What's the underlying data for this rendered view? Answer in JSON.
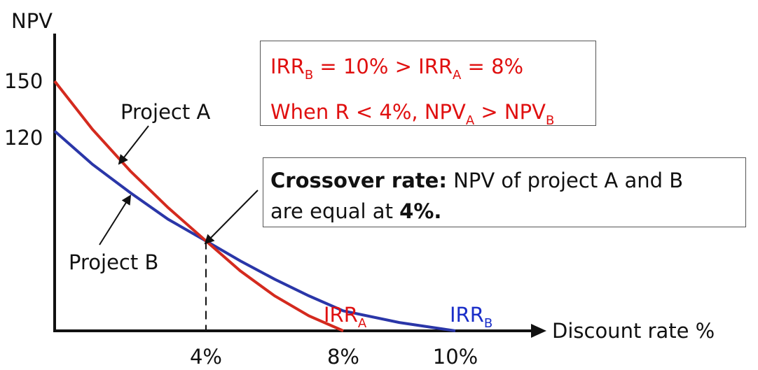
{
  "chart_data": {
    "type": "line",
    "ylabel": "NPV",
    "xlabel": "Discount rate %",
    "y_ticks": [
      "150",
      "120"
    ],
    "x_ticks": [
      "4%",
      "8%",
      "10%"
    ],
    "series": [
      {
        "name": "Project A",
        "color": "#d42a1e",
        "x": [
          0,
          1,
          2,
          3,
          4,
          5,
          6,
          7,
          8
        ],
        "y": [
          150,
          121,
          96,
          74,
          54,
          36,
          21,
          9,
          0
        ]
      },
      {
        "name": "Project B",
        "color": "#2a36a8",
        "x": [
          0,
          1,
          2,
          3,
          4,
          5,
          6,
          7,
          8,
          9,
          10
        ],
        "y": [
          120,
          100,
          83,
          67,
          54,
          42,
          31,
          21,
          12,
          5,
          0
        ]
      }
    ],
    "crossover": {
      "x": 4,
      "y": 54
    },
    "irr_labels": [
      {
        "text": "IRR",
        "sub": "A",
        "x": 8,
        "color": "#e01010"
      },
      {
        "text": "IRR",
        "sub": "B",
        "x": 10,
        "color": "#1a2ec8"
      }
    ]
  },
  "annotations": {
    "box1": {
      "line1_a": "IRR",
      "line1_sub1": "B",
      "line1_b": " = 10% > IRR",
      "line1_sub2": "A",
      "line1_c": " = 8%",
      "line2_a": "When R < 4%, NPV",
      "line2_sub1": "A",
      "line2_b": " > NPV",
      "line2_sub2": "B"
    },
    "box2": {
      "bold1": "Crossover rate:",
      "text1": " NPV of project A and B",
      "text2": "are equal at ",
      "bold2": "4%."
    }
  }
}
